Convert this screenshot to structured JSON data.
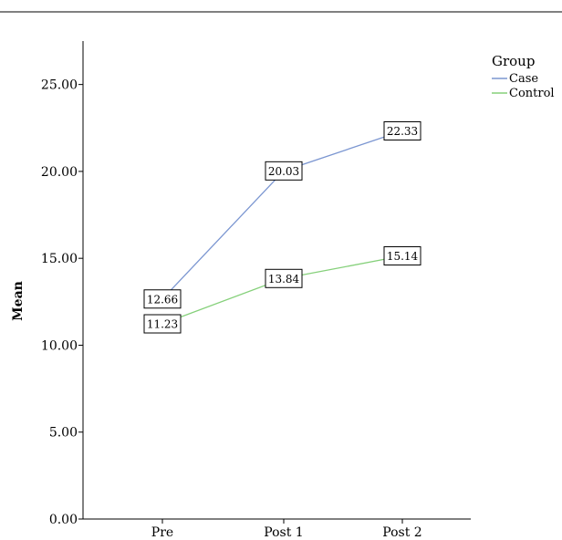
{
  "chart_data": {
    "type": "line",
    "categories": [
      "Pre",
      "Post 1",
      "Post 2"
    ],
    "series": [
      {
        "name": "Case",
        "values": [
          12.66,
          20.03,
          22.33
        ],
        "color": "#7b96d1"
      },
      {
        "name": "Control",
        "values": [
          11.23,
          13.84,
          15.14
        ],
        "color": "#85d07a"
      }
    ],
    "data_labels": {
      "Case": [
        "12.66",
        "20.03",
        "22.33"
      ],
      "Control": [
        "11.23",
        "13.84",
        "15.14"
      ]
    },
    "ylabel": "Mean",
    "xlabel": "",
    "ylim": [
      0,
      27.5
    ],
    "yticks": [
      0,
      5,
      10,
      15,
      20,
      25
    ],
    "ytick_labels": [
      "0.00",
      "5.00",
      "10.00",
      "15.00",
      "20.00",
      "25.00"
    ],
    "legend": {
      "title": "Group",
      "position": "top-right"
    },
    "grid": false
  }
}
